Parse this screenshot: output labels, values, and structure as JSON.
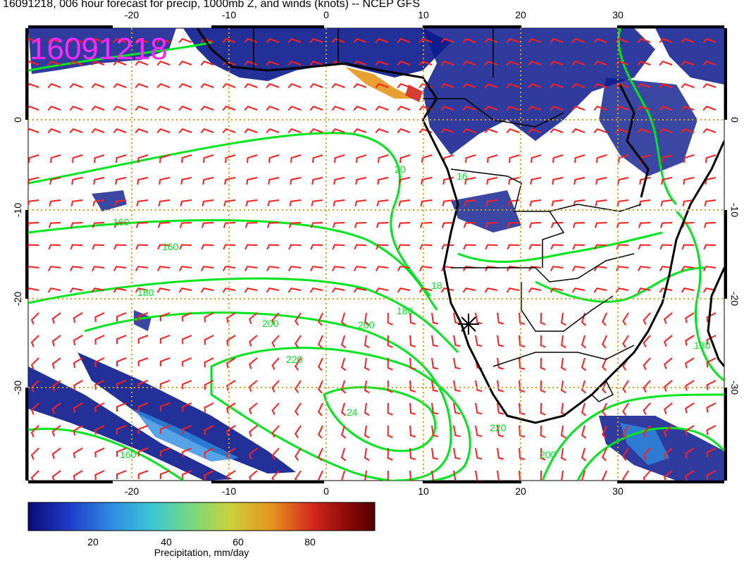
{
  "title": "16091218, 006 hour forecast for precip, 1000mb Z, and winds (knots) -- NCEP GFS",
  "stamp": "16091218",
  "lon_ticks": [
    "-20",
    "-10",
    "0",
    "10",
    "20",
    "30"
  ],
  "lat_ticks": [
    "0",
    "-10",
    "-20",
    "-30"
  ],
  "colorbar": {
    "label": "Precipitation, mm/day",
    "ticks": [
      "20",
      "40",
      "60",
      "80"
    ],
    "range": [
      0,
      100
    ],
    "colors": [
      "#0a0a78",
      "#1e3cc8",
      "#2e8be0",
      "#3cc8d2",
      "#7dd87a",
      "#c8d23c",
      "#e6961e",
      "#d2281e",
      "#8c0a0a",
      "#500000"
    ]
  },
  "contour_labels": [
    "160",
    "180",
    "200",
    "200",
    "220",
    "220",
    "24",
    "180",
    "160",
    "200",
    "20",
    "18",
    "16",
    "160",
    "180"
  ],
  "colors": {
    "precip_low": "#0a1a8c",
    "contour": "#00e61e",
    "wind": "#ff1e1e",
    "grid": "#d7a21c",
    "coast": "#000000",
    "stamp": "#ff28ff"
  }
}
